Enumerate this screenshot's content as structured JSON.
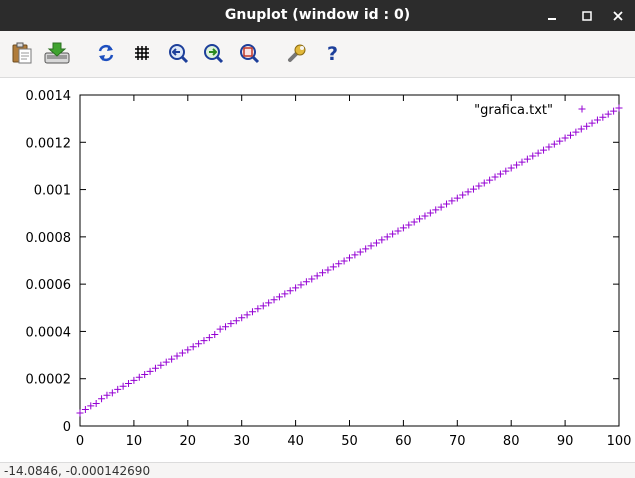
{
  "window": {
    "title": "Gnuplot (window id : 0)",
    "controls": [
      "minimize-icon",
      "maximize-icon",
      "close-icon"
    ]
  },
  "toolbar": {
    "buttons": [
      {
        "name": "copy-to-clipboard",
        "icon": "clipboard-icon"
      },
      {
        "name": "export",
        "icon": "export-drive-icon"
      },
      {
        "name": "replot",
        "icon": "refresh-icon"
      },
      {
        "name": "grid",
        "icon": "grid-icon"
      },
      {
        "name": "previous-zoom",
        "icon": "zoom-previous-icon"
      },
      {
        "name": "next-zoom",
        "icon": "zoom-next-icon"
      },
      {
        "name": "autoscale",
        "icon": "zoom-autoscale-icon"
      },
      {
        "name": "settings",
        "icon": "wrench-icon"
      },
      {
        "name": "help",
        "icon": "help-icon"
      }
    ]
  },
  "colors": {
    "titlebar": "#2c2c2c",
    "series": "#9400d3",
    "axis": "#000000",
    "toolbar_bg": "#f6f5f4"
  },
  "chart_data": {
    "type": "scatter",
    "xlim": [
      0,
      100
    ],
    "ylim": [
      0,
      0.0014
    ],
    "xticks": [
      "0",
      "10",
      "20",
      "30",
      "40",
      "50",
      "60",
      "70",
      "80",
      "90",
      "100"
    ],
    "yticks": [
      "0",
      "0.0002",
      "0.0004",
      "0.0006",
      "0.0008",
      "0.001",
      "0.0012",
      "0.0014"
    ],
    "legend_position": "top-right",
    "grid": false,
    "marker": "+",
    "series": [
      {
        "name": "\"grafica.txt\"",
        "x": [
          0,
          1,
          2,
          3,
          4,
          5,
          6,
          7,
          8,
          9,
          10,
          11,
          12,
          13,
          14,
          15,
          16,
          17,
          18,
          19,
          20,
          21,
          22,
          23,
          24,
          25,
          26,
          27,
          28,
          29,
          30,
          31,
          32,
          33,
          34,
          35,
          36,
          37,
          38,
          39,
          40,
          41,
          42,
          43,
          44,
          45,
          46,
          47,
          48,
          49,
          50,
          51,
          52,
          53,
          54,
          55,
          56,
          57,
          58,
          59,
          60,
          61,
          62,
          63,
          64,
          65,
          66,
          67,
          68,
          69,
          70,
          71,
          72,
          73,
          74,
          75,
          76,
          77,
          78,
          79,
          80,
          81,
          82,
          83,
          84,
          85,
          86,
          87,
          88,
          89,
          90,
          91,
          92,
          93,
          94,
          95,
          96,
          97,
          98,
          99,
          100
        ],
        "y": [
          5.5e-05,
          7e-05,
          8.5e-05,
          9.5e-05,
          0.000115,
          0.00013,
          0.00014,
          0.000155,
          0.000168,
          0.00018,
          0.000193,
          0.000206,
          0.000218,
          0.000231,
          0.000244,
          0.000257,
          0.00027,
          0.000283,
          0.000296,
          0.000309,
          0.000322,
          0.000335,
          0.000348,
          0.000361,
          0.000374,
          0.000387,
          0.00041,
          0.00042,
          0.000433,
          0.000445,
          0.000458,
          0.00047,
          0.000483,
          0.000496,
          0.000508,
          0.000521,
          0.000534,
          0.000546,
          0.000559,
          0.000572,
          0.000584,
          0.000597,
          0.00061,
          0.000622,
          0.000635,
          0.000648,
          0.00066,
          0.000673,
          0.000686,
          0.000698,
          0.000711,
          0.000724,
          0.000736,
          0.000749,
          0.000762,
          0.000774,
          0.000787,
          0.0008,
          0.000812,
          0.000825,
          0.000838,
          0.00085,
          0.000863,
          0.000876,
          0.000888,
          0.000901,
          0.000914,
          0.000926,
          0.000939,
          0.000952,
          0.000964,
          0.000977,
          0.00099,
          0.001002,
          0.001015,
          0.001028,
          0.00104,
          0.001053,
          0.001066,
          0.001078,
          0.001091,
          0.001104,
          0.001116,
          0.001129,
          0.001142,
          0.001154,
          0.001167,
          0.00118,
          0.001192,
          0.001205,
          0.001218,
          0.00123,
          0.001243,
          0.001256,
          0.001268,
          0.001281,
          0.001294,
          0.001306,
          0.001319,
          0.001332,
          0.001345
        ]
      }
    ]
  },
  "statusbar": {
    "coords": "-14.0846, -0.000142690"
  }
}
